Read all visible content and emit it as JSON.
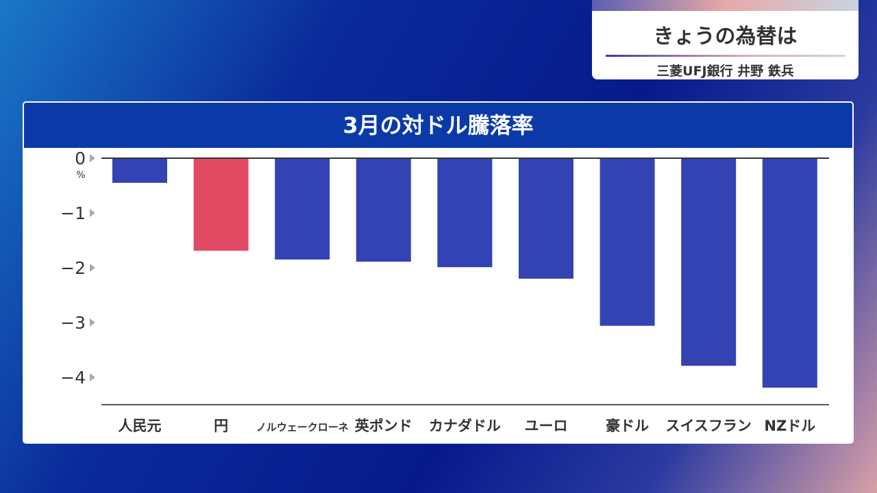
{
  "header": {
    "title": "きょうの為替は",
    "subtitle": "三菱UFJ銀行 井野 鉄兵"
  },
  "chart_data": {
    "type": "bar",
    "title": "3月の対ドル騰落率",
    "ylabel": "%",
    "ylim": [
      -4.5,
      0
    ],
    "yticks": [
      0,
      -1,
      -2,
      -3,
      -4
    ],
    "ytick_labels": [
      "0",
      "−1",
      "−2",
      "−3",
      "−4"
    ],
    "categories": [
      "人民元",
      "円",
      "ノルウェークローネ",
      "英ポンド",
      "カナダドル",
      "ユーロ",
      "豪ドル",
      "スイスフラン",
      "NZドル"
    ],
    "values": [
      -0.45,
      -1.69,
      -1.85,
      -1.89,
      -1.99,
      -2.2,
      -3.06,
      -3.79,
      -4.19
    ],
    "colors": [
      "#3343b3",
      "#e34a64",
      "#3343b3",
      "#3343b3",
      "#3343b3",
      "#3343b3",
      "#3343b3",
      "#3343b3",
      "#3343b3"
    ]
  }
}
